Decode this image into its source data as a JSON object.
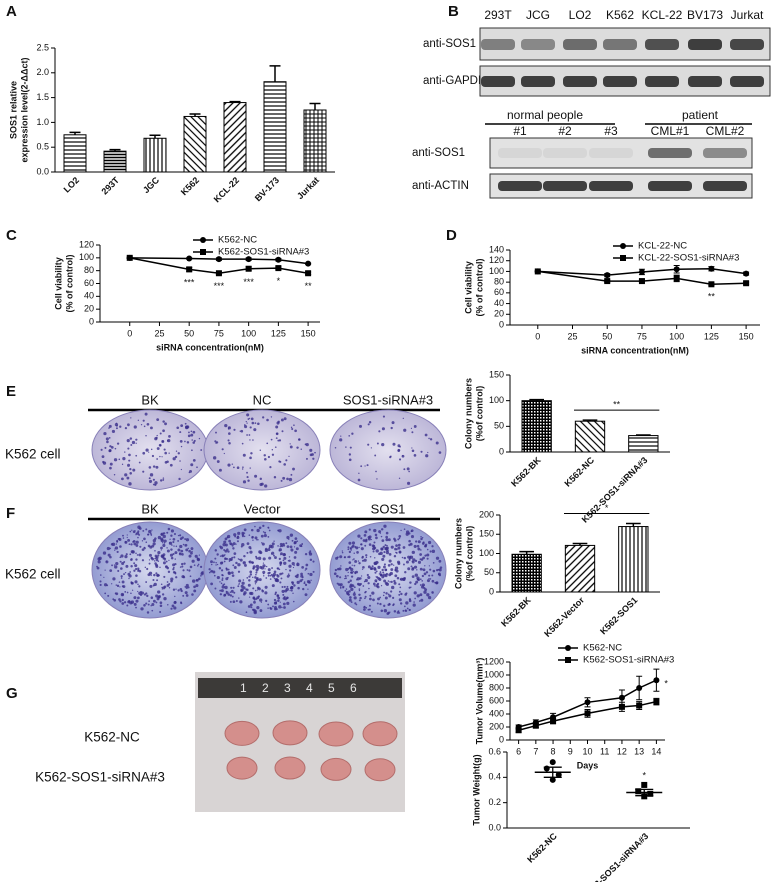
{
  "panel_labels": [
    "A",
    "B",
    "C",
    "D",
    "E",
    "F",
    "G"
  ],
  "blot_b": {
    "lanes": [
      "293T",
      "JCG",
      "LO2",
      "K562",
      "KCL-22",
      "BV173",
      "Jurkat"
    ],
    "rows": [
      "anti-SOS1",
      "anti-GAPDH"
    ]
  },
  "blot_b2": {
    "groups": [
      "normal people",
      "patient"
    ],
    "lanes": [
      "#1",
      "#2",
      "#3",
      "CML#1",
      "CML#2"
    ],
    "rows": [
      "anti-SOS1",
      "anti-ACTIN"
    ]
  },
  "colony_e": {
    "columns": [
      "BK",
      "NC",
      "SOS1-siRNA#3"
    ],
    "row": "K562 cell"
  },
  "colony_f": {
    "columns": [
      "BK",
      "Vector",
      "SOS1"
    ],
    "row": "K562 cell"
  },
  "tumor_photo": {
    "ruler": [
      "1",
      "2",
      "3",
      "4",
      "5",
      "6"
    ],
    "rows": [
      "K562-NC",
      "K562-SOS1-siRNA#3"
    ]
  },
  "chart_data": [
    {
      "type": "bar",
      "ylabel": [
        "SOS1 relative",
        "expression level(2-ΔΔct)"
      ],
      "categories": [
        "LO2",
        "293T",
        "JGC",
        "K562",
        "KCL-22",
        "BV-173",
        "Jurkat"
      ],
      "values": [
        0.75,
        0.42,
        0.68,
        1.12,
        1.4,
        1.82,
        1.25
      ],
      "errors": [
        0.05,
        0.03,
        0.06,
        0.05,
        0.02,
        0.32,
        0.13
      ],
      "ylim": [
        0,
        2.5
      ],
      "yticks": [
        {
          "value": 0,
          "label": "0.0"
        },
        {
          "value": 0.5,
          "label": "0.5"
        },
        {
          "value": 1,
          "label": "1.0"
        },
        {
          "value": 1.5,
          "label": "1.5"
        },
        {
          "value": 2,
          "label": "2.0"
        },
        {
          "value": 2.5,
          "label": "2.5"
        }
      ]
    },
    {
      "type": "line",
      "xlabel": "siRNA concentration(nM)",
      "ylabel": [
        "Cell viability",
        "(% of control)"
      ],
      "x": [
        0,
        50,
        75,
        100,
        125,
        150
      ],
      "xlim": [
        -25,
        160
      ],
      "xticks": [
        0,
        25,
        50,
        75,
        100,
        125,
        150
      ],
      "ylim": [
        0,
        120
      ],
      "yticks": [
        0,
        20,
        40,
        60,
        80,
        100,
        120
      ],
      "series": [
        {
          "name": "K562-NC",
          "marker": "circle",
          "values": [
            100,
            99,
            98,
            98,
            97,
            91
          ],
          "errors": [
            1,
            1,
            2,
            2,
            2,
            1
          ]
        },
        {
          "name": "K562-SOS1-siRNA#3",
          "marker": "square",
          "values": [
            100,
            82,
            76,
            83,
            84,
            76
          ],
          "errors": [
            1,
            3,
            2,
            3,
            2,
            2
          ]
        }
      ],
      "significance": [
        null,
        "***",
        "***",
        "***",
        "*",
        "**"
      ]
    },
    {
      "type": "line",
      "xlabel": "siRNA concentration(nM)",
      "ylabel": [
        "Cell viability",
        "(% of control)"
      ],
      "x": [
        0,
        50,
        75,
        100,
        125,
        150
      ],
      "xlim": [
        -20,
        160
      ],
      "xticks": [
        0,
        25,
        50,
        75,
        100,
        125,
        150
      ],
      "ylim": [
        0,
        140
      ],
      "yticks": [
        0,
        20,
        40,
        60,
        80,
        100,
        120,
        140
      ],
      "series": [
        {
          "name": "KCL-22-NC",
          "marker": "circle",
          "values": [
            100,
            93,
            99,
            104,
            105,
            96
          ],
          "errors": [
            1,
            3,
            5,
            7,
            4,
            3
          ]
        },
        {
          "name": "KCL-22-SOS1-siRNA#3",
          "marker": "square",
          "values": [
            100,
            82,
            82,
            87,
            76,
            78
          ],
          "errors": [
            1,
            2,
            2,
            6,
            2,
            2
          ]
        }
      ],
      "significance": [
        null,
        null,
        null,
        null,
        "**",
        null
      ]
    },
    {
      "type": "bar",
      "ylabel": [
        "Colony numbers",
        "(%of control)"
      ],
      "categories": [
        "K562-BK",
        "K562-NC",
        "K562-SOS1-siRNA#3"
      ],
      "values": [
        100,
        60,
        32
      ],
      "errors": [
        2,
        2,
        1
      ],
      "ylim": [
        0,
        150
      ],
      "yticks": [
        0,
        50,
        100,
        150
      ],
      "annotation": "**"
    },
    {
      "type": "bar",
      "ylabel": [
        "Colony numbers",
        "(%of control)"
      ],
      "categories": [
        "K562-BK",
        "K562-Vector",
        "K562-SOS1"
      ],
      "values": [
        98,
        121,
        170
      ],
      "errors": [
        7,
        5,
        8
      ],
      "ylim": [
        0,
        200
      ],
      "yticks": [
        0,
        50,
        100,
        150,
        200
      ],
      "annotation": "*"
    },
    {
      "type": "line",
      "xlabel": "Days",
      "ylabel": [
        "Tumor Volume(mm³)"
      ],
      "x": [
        6,
        7,
        8,
        10,
        12,
        13,
        14
      ],
      "xlim": [
        5.5,
        14.5
      ],
      "xticks": [
        6,
        7,
        8,
        9,
        10,
        11,
        12,
        13,
        14
      ],
      "ylim": [
        0,
        1200
      ],
      "yticks": [
        0,
        200,
        400,
        600,
        800,
        1000,
        1200
      ],
      "series": [
        {
          "name": "K562-NC",
          "marker": "circle",
          "values": [
            200,
            270,
            350,
            580,
            650,
            800,
            920
          ],
          "errors": [
            30,
            40,
            60,
            70,
            120,
            180,
            170
          ]
        },
        {
          "name": "K562-SOS1-siRNA#3",
          "marker": "square",
          "values": [
            150,
            220,
            290,
            410,
            510,
            530,
            590
          ],
          "errors": [
            30,
            30,
            40,
            60,
            70,
            60,
            50
          ]
        }
      ],
      "annotation": "*"
    },
    {
      "type": "dot",
      "ylabel": [
        "Tumor Weight(g)"
      ],
      "categories": [
        "K562-NC",
        "K562-SOS1-siRNA#3"
      ],
      "markers": [
        "circle",
        "square"
      ],
      "values": [
        [
          0.52,
          0.47,
          0.42,
          0.38
        ],
        [
          0.34,
          0.29,
          0.27,
          0.25
        ]
      ],
      "means": [
        0.44,
        0.28
      ],
      "errors": [
        0.04,
        0.025
      ],
      "ylim": [
        0,
        0.6
      ],
      "yticks": [
        {
          "value": 0,
          "label": "0.0"
        },
        {
          "value": 0.2,
          "label": "0.2"
        },
        {
          "value": 0.4,
          "label": "0.4"
        },
        {
          "value": 0.6,
          "label": "0.6"
        }
      ],
      "annotation": "*"
    }
  ]
}
